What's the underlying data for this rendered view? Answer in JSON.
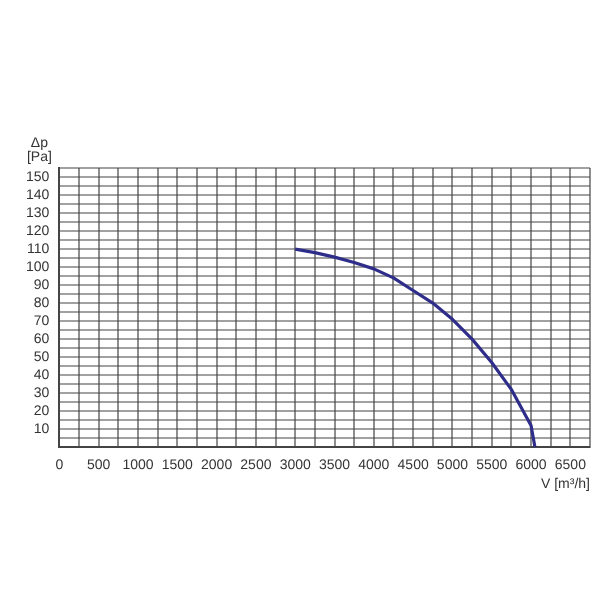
{
  "chart_data": {
    "type": "line",
    "ylabel": "Δp [Pa]",
    "xlabel": "V [m³/h]",
    "xlim": [
      0,
      6750
    ],
    "ylim": [
      0,
      155
    ],
    "xticks": [
      0,
      {
        "value": 250,
        "label": null
      },
      500,
      {
        "value": 750,
        "label": null
      },
      1000,
      {
        "value": 1250,
        "label": null
      },
      1500,
      {
        "value": 1750,
        "label": null
      },
      2000,
      {
        "value": 2250,
        "label": null
      },
      2500,
      {
        "value": 2750,
        "label": null
      },
      3000,
      {
        "value": 3250,
        "label": null
      },
      3500,
      {
        "value": 3750,
        "label": null
      },
      4000,
      {
        "value": 4250,
        "label": null
      },
      4500,
      {
        "value": 4750,
        "label": null
      },
      5000,
      {
        "value": 5250,
        "label": null
      },
      5500,
      {
        "value": 5750,
        "label": null
      },
      6000,
      {
        "value": 6250,
        "label": null
      },
      6500,
      {
        "value": 6750,
        "label": null
      }
    ],
    "yticks": [
      {
        "value": 0,
        "label": null
      },
      {
        "value": 5,
        "label": null
      },
      10,
      {
        "value": 15,
        "label": null
      },
      20,
      {
        "value": 25,
        "label": null
      },
      30,
      {
        "value": 35,
        "label": null
      },
      40,
      {
        "value": 45,
        "label": null
      },
      50,
      {
        "value": 55,
        "label": null
      },
      60,
      {
        "value": 65,
        "label": null
      },
      70,
      {
        "value": 75,
        "label": null
      },
      80,
      {
        "value": 85,
        "label": null
      },
      90,
      {
        "value": 95,
        "label": null
      },
      100,
      {
        "value": 105,
        "label": null
      },
      110,
      {
        "value": 115,
        "label": null
      },
      120,
      {
        "value": 125,
        "label": null
      },
      130,
      {
        "value": 135,
        "label": null
      },
      140,
      {
        "value": 145,
        "label": null
      },
      150,
      {
        "value": 155,
        "label": null
      }
    ],
    "grid": true,
    "legend": false,
    "marker": "none",
    "line_style": "solid",
    "series": [
      {
        "color": "#2e2e8a",
        "x": [
          3000,
          3250,
          3500,
          3750,
          4000,
          4250,
          4500,
          4750,
          5000,
          5250,
          5500,
          5750,
          6000,
          6050
        ],
        "values": [
          110,
          108,
          105.5,
          102.5,
          99,
          94,
          87,
          80,
          71,
          60,
          47,
          32,
          12,
          0
        ]
      }
    ]
  }
}
